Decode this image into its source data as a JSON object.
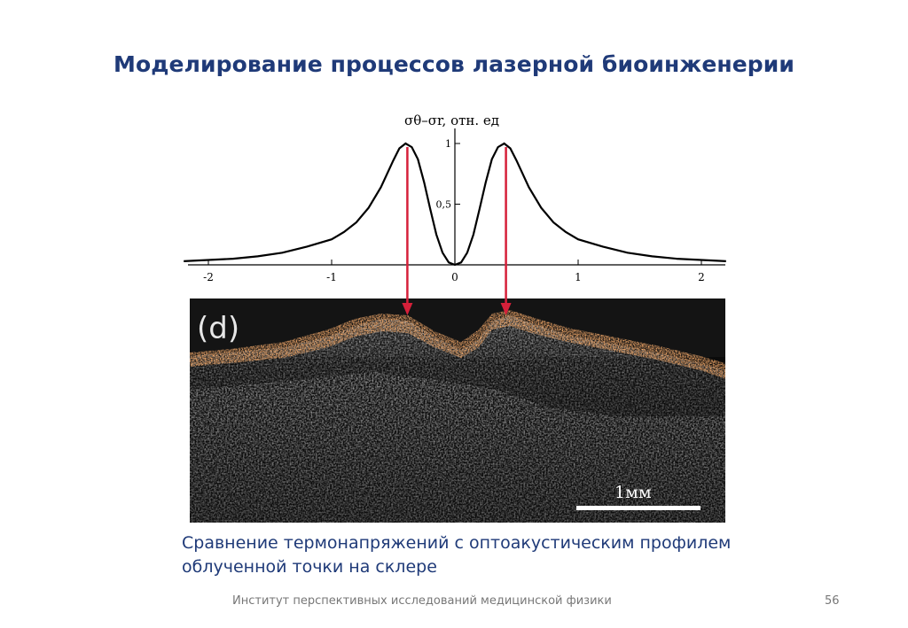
{
  "slide": {
    "title": "Моделирование процессов лазерной биоинженерии",
    "caption_line1": "Сравнение термонапряжений с оптоакустическим профилем",
    "caption_line2": "облученной точки на склере",
    "footer": "Институт перспективных исследований медицинской физики",
    "page_number": "56"
  },
  "chart_data": {
    "type": "line",
    "y_axis_label": "σθ–σr, отн. ед",
    "x_ticks": [
      "-2",
      "-1",
      "0",
      "1",
      "2"
    ],
    "y_ticks": [
      "0,5",
      "1"
    ],
    "xlim": [
      -2.2,
      2.2
    ],
    "ylim": [
      0,
      1
    ],
    "series": [
      {
        "x": [
          -2.2,
          -2.0,
          -1.8,
          -1.6,
          -1.4,
          -1.2,
          -1.0,
          -0.9,
          -0.8,
          -0.7,
          -0.6,
          -0.5,
          -0.45,
          -0.4,
          -0.35,
          -0.3,
          -0.25,
          -0.2,
          -0.15,
          -0.1,
          -0.05,
          0,
          0.05,
          0.1,
          0.15,
          0.2,
          0.25,
          0.3,
          0.35,
          0.4,
          0.45,
          0.5,
          0.6,
          0.7,
          0.8,
          0.9,
          1.0,
          1.2,
          1.4,
          1.6,
          1.8,
          2.0,
          2.2
        ],
        "y": [
          0.03,
          0.04,
          0.05,
          0.07,
          0.1,
          0.15,
          0.21,
          0.27,
          0.35,
          0.47,
          0.64,
          0.86,
          0.96,
          1.0,
          0.97,
          0.87,
          0.68,
          0.46,
          0.25,
          0.1,
          0.02,
          0.0,
          0.02,
          0.1,
          0.25,
          0.46,
          0.68,
          0.87,
          0.97,
          1.0,
          0.96,
          0.86,
          0.64,
          0.47,
          0.35,
          0.27,
          0.21,
          0.15,
          0.1,
          0.07,
          0.05,
          0.04,
          0.03
        ]
      }
    ],
    "markers_x": [
      -0.4,
      0.4
    ],
    "grid": false
  },
  "image_panel": {
    "label": "(d)",
    "scale_bar_label": "1мм"
  },
  "colors": {
    "title": "#1f3a78",
    "arrows": "#d6203a",
    "curve": "#000000",
    "surface_highlight": "#e8632a",
    "panel_background": "#0a0a0a"
  }
}
